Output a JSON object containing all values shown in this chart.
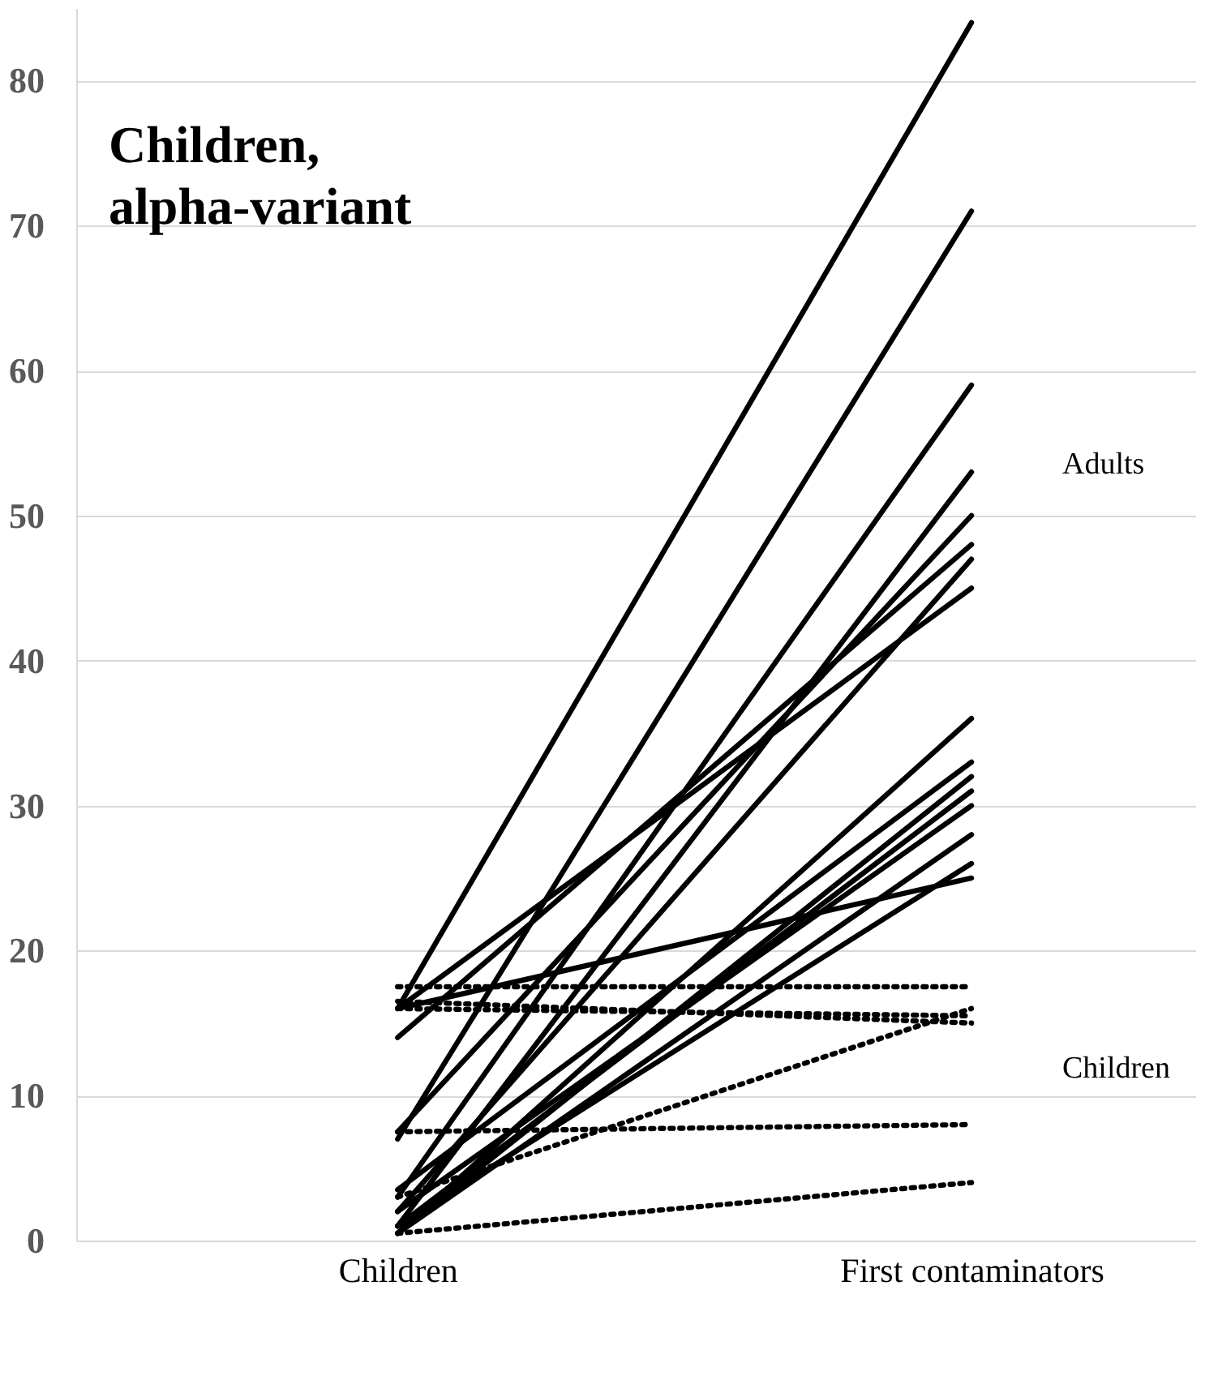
{
  "chart_data": {
    "type": "line",
    "title": "Children,\nalpha-variant",
    "categories": [
      "Children",
      "First contaminators"
    ],
    "ylim": [
      0,
      85
    ],
    "yticks": [
      0,
      10,
      20,
      30,
      40,
      50,
      60,
      70,
      80
    ],
    "grid": "y",
    "marker": "none",
    "annotations": [
      "Adults",
      "Children"
    ],
    "series": [
      {
        "color": "#000000",
        "line_style": "solid",
        "values": [
          16,
          84
        ]
      },
      {
        "color": "#000000",
        "line_style": "solid",
        "values": [
          7,
          71
        ]
      },
      {
        "color": "#000000",
        "line_style": "solid",
        "values": [
          3,
          59
        ]
      },
      {
        "color": "#000000",
        "line_style": "solid",
        "values": [
          1,
          53
        ]
      },
      {
        "color": "#000000",
        "line_style": "solid",
        "values": [
          7.5,
          50
        ]
      },
      {
        "color": "#000000",
        "line_style": "solid",
        "values": [
          14,
          48
        ]
      },
      {
        "color": "#000000",
        "line_style": "solid",
        "values": [
          2,
          47
        ]
      },
      {
        "color": "#000000",
        "line_style": "solid",
        "values": [
          16,
          45
        ]
      },
      {
        "color": "#000000",
        "line_style": "solid",
        "values": [
          0.5,
          36
        ]
      },
      {
        "color": "#000000",
        "line_style": "solid",
        "values": [
          3.5,
          33
        ]
      },
      {
        "color": "#000000",
        "line_style": "solid",
        "values": [
          0.5,
          32
        ]
      },
      {
        "color": "#000000",
        "line_style": "solid",
        "values": [
          1,
          31
        ]
      },
      {
        "color": "#000000",
        "line_style": "solid",
        "values": [
          2,
          30
        ]
      },
      {
        "color": "#000000",
        "line_style": "solid",
        "values": [
          0.5,
          28
        ]
      },
      {
        "color": "#000000",
        "line_style": "solid",
        "values": [
          1,
          26
        ]
      },
      {
        "color": "#000000",
        "line_style": "solid",
        "values": [
          16,
          25
        ]
      },
      {
        "color": "#000000",
        "line_style": "dotted",
        "values": [
          17.5,
          17.5
        ]
      },
      {
        "color": "#000000",
        "line_style": "dotted",
        "values": [
          16.5,
          15
        ]
      },
      {
        "color": "#000000",
        "line_style": "dotted",
        "values": [
          16,
          15.5
        ]
      },
      {
        "color": "#000000",
        "line_style": "dotted",
        "values": [
          3,
          16
        ]
      },
      {
        "color": "#000000",
        "line_style": "dotted",
        "values": [
          7.5,
          8
        ]
      },
      {
        "color": "#000000",
        "line_style": "dotted",
        "values": [
          0.5,
          4
        ]
      }
    ]
  }
}
